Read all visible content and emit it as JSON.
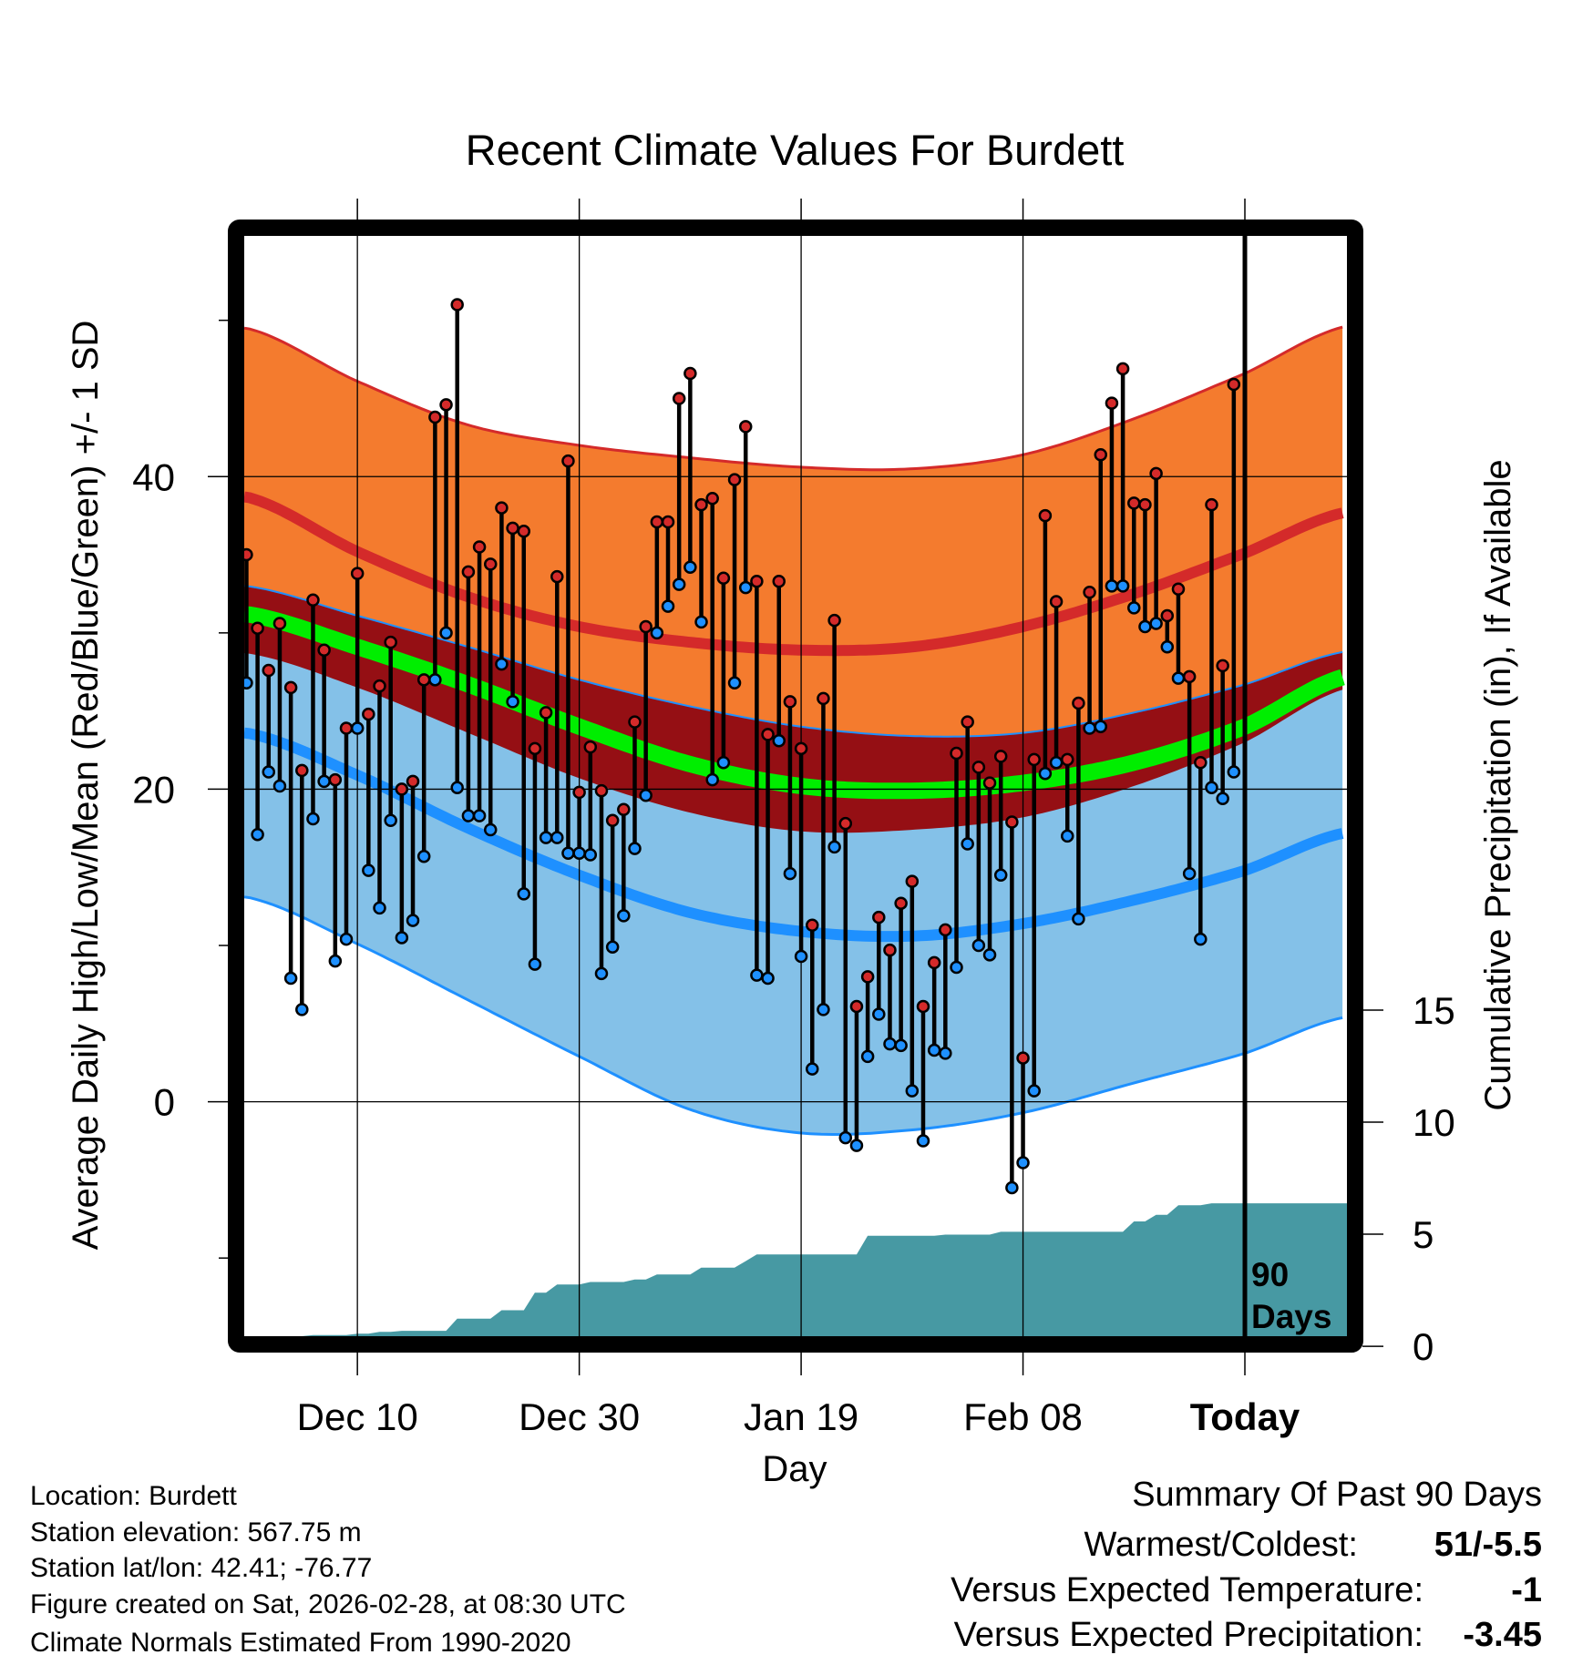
{
  "chart_data": {
    "type": "line",
    "title": "Recent Climate Values For Burdett",
    "xlabel": "Day",
    "ylabel": "Average Daily High/Low/Mean (Red/Blue/Green) +/- 1 SD",
    "y2label": "Cumulative Precipitation (in), If Available",
    "xlim": [
      -0.2,
      99.2
    ],
    "ylim": [
      -15,
      55.4
    ],
    "y2lim": [
      0.45,
      49.55
    ],
    "grid": true,
    "start_date": "Nov 30",
    "x_ticks": [
      {
        "day": 10,
        "label": "Dec 10"
      },
      {
        "day": 30,
        "label": "Dec 30"
      },
      {
        "day": 50,
        "label": "Jan 19"
      },
      {
        "day": 70,
        "label": "Feb 08"
      },
      {
        "day": 90,
        "label": "Today"
      }
    ],
    "y_ticks": [
      0,
      20,
      40
    ],
    "y_tick_labels": [
      "0",
      "20",
      "40"
    ],
    "y_minor_ticks": [
      -10,
      10,
      30,
      50
    ],
    "y2_ticks": [
      0,
      5,
      10,
      15
    ],
    "y2_tick_labels": [
      "0",
      "5",
      "10",
      "15"
    ],
    "today_day": 90,
    "period_label_1": "90",
    "period_label_2": "Days",
    "highs": [
      35,
      30.3,
      27.6,
      30.6,
      26.5,
      21.2,
      32.1,
      28.9,
      20.6,
      23.9,
      33.8,
      24.8,
      26.6,
      29.4,
      20.0,
      20.5,
      27.0,
      43.8,
      44.6,
      51.0,
      33.9,
      35.5,
      34.4,
      38.0,
      36.7,
      36.5,
      22.6,
      24.9,
      33.6,
      41.0,
      19.8,
      22.7,
      19.9,
      18.0,
      18.7,
      24.3,
      30.4,
      37.1,
      37.1,
      45.0,
      46.6,
      38.2,
      38.6,
      33.5,
      39.8,
      43.2,
      33.3,
      23.5,
      33.3,
      25.6,
      22.6,
      11.3,
      25.8,
      30.8,
      17.8,
      6.1,
      8.0,
      11.8,
      9.7,
      12.7,
      14.1,
      6.1,
      8.9,
      11.0,
      22.3,
      24.3,
      21.4,
      20.4,
      22.1,
      17.9,
      2.8,
      21.9,
      37.5,
      32.0,
      21.9,
      25.5,
      32.6,
      41.4,
      44.7,
      46.9,
      38.3,
      38.2,
      40.2,
      31.1,
      32.8,
      27.2,
      21.7,
      38.2,
      27.9,
      45.9
    ],
    "lows": [
      26.8,
      17.1,
      21.1,
      20.2,
      7.9,
      5.9,
      18.1,
      20.5,
      9.0,
      10.4,
      23.9,
      14.8,
      12.4,
      18.0,
      10.5,
      11.6,
      15.7,
      27.0,
      30.0,
      20.1,
      18.3,
      18.3,
      17.4,
      28.0,
      25.6,
      13.3,
      8.8,
      16.9,
      16.9,
      15.9,
      15.9,
      15.8,
      8.2,
      9.9,
      11.9,
      16.2,
      19.6,
      30.0,
      31.7,
      33.1,
      34.2,
      30.7,
      20.6,
      21.7,
      26.8,
      32.9,
      8.1,
      7.9,
      23.1,
      14.6,
      9.3,
      2.1,
      5.9,
      16.3,
      -2.3,
      -2.8,
      2.9,
      5.6,
      3.7,
      3.6,
      0.7,
      -2.5,
      3.3,
      3.1,
      8.6,
      16.5,
      10.0,
      9.4,
      14.5,
      -5.5,
      -3.9,
      0.7,
      21.0,
      21.7,
      17.0,
      11.7,
      23.9,
      24.0,
      33.0,
      33.0,
      31.6,
      30.4,
      30.6,
      29.1,
      27.1,
      14.6,
      10.4,
      20.1,
      19.4,
      21.1
    ],
    "precip_cumulative": [
      0.4,
      0.4,
      0.44,
      0.44,
      0.44,
      0.44,
      0.5,
      0.5,
      0.5,
      0.5,
      0.56,
      0.56,
      0.64,
      0.64,
      0.69,
      0.69,
      0.69,
      0.69,
      0.69,
      1.23,
      1.23,
      1.23,
      1.23,
      1.61,
      1.61,
      1.61,
      2.39,
      2.39,
      2.76,
      2.76,
      2.76,
      2.87,
      2.87,
      2.87,
      2.87,
      2.98,
      2.98,
      3.2,
      3.2,
      3.2,
      3.2,
      3.51,
      3.51,
      3.51,
      3.51,
      3.8,
      4.1,
      4.1,
      4.1,
      4.1,
      4.1,
      4.1,
      4.1,
      4.1,
      4.1,
      4.1,
      4.93,
      4.93,
      4.93,
      4.93,
      4.93,
      4.93,
      4.93,
      4.98,
      4.98,
      4.98,
      4.98,
      4.98,
      5.11,
      5.11,
      5.11,
      5.11,
      5.11,
      5.11,
      5.11,
      5.11,
      5.11,
      5.11,
      5.11,
      5.11,
      5.57,
      5.57,
      5.87,
      5.87,
      6.29,
      6.29,
      6.29,
      6.38,
      6.38,
      6.38
    ],
    "normals": {
      "days": [
        0,
        10,
        20,
        30,
        40,
        50,
        60,
        70,
        80,
        90,
        99
      ],
      "high_plus_sd": [
        49.5,
        46.1,
        43.3,
        42.0,
        41.2,
        40.6,
        40.5,
        41.4,
        43.7,
        46.6,
        49.6
      ],
      "high_mean": [
        38.7,
        35.2,
        32.3,
        30.4,
        29.4,
        28.9,
        29.1,
        30.4,
        32.5,
        35.1,
        37.7
      ],
      "high_minus_sd": [
        28.7,
        26.5,
        23.6,
        20.7,
        18.5,
        17.3,
        17.4,
        18.2,
        20.2,
        23.0,
        26.4
      ],
      "mean": [
        31.2,
        29.1,
        26.7,
        24.0,
        21.6,
        20.2,
        19.9,
        20.4,
        21.7,
        24.0,
        27.2
      ],
      "low_plus_sd": [
        33.0,
        31.1,
        29.1,
        27.0,
        25.3,
        24.0,
        23.4,
        23.6,
        24.9,
        26.7,
        28.8
      ],
      "low_mean": [
        23.6,
        20.9,
        17.5,
        14.5,
        12.1,
        10.9,
        10.6,
        11.4,
        12.9,
        14.8,
        17.2
      ],
      "low_minus_sd": [
        13.1,
        10.1,
        6.5,
        2.9,
        -0.5,
        -2.0,
        -1.8,
        -0.7,
        1.2,
        3.1,
        5.4
      ]
    },
    "colors": {
      "high_band": "#f47b2e",
      "low_band": "#84c1e8",
      "overlap_band": "#950f14",
      "high_line": "#d42a2a",
      "mean_line": "#00ee00",
      "low_line": "#1e90ff",
      "precip": "#4799a3",
      "high_dot": "#d42a2a",
      "low_dot": "#1e90ff"
    }
  },
  "footer": {
    "location": "Location: Burdett",
    "elevation": "Station elevation: 567.75 m",
    "latlon": "Station lat/lon: 42.41; -76.77",
    "created": "Figure created on Sat, 2026-02-28, at 08:30 UTC",
    "normals": "Climate Normals Estimated From 1990-2020"
  },
  "summary": {
    "title": "Summary Of Past 90 Days",
    "warmest_label": "Warmest/Coldest:",
    "warmest_value": "51/-5.5",
    "temp_label": "Versus Expected Temperature:",
    "temp_value": "-1",
    "temp_color": "#1e90ff",
    "precip_label": "Versus Expected Precipitation:",
    "precip_value": "-3.45",
    "precip_color": "#a0522d"
  }
}
